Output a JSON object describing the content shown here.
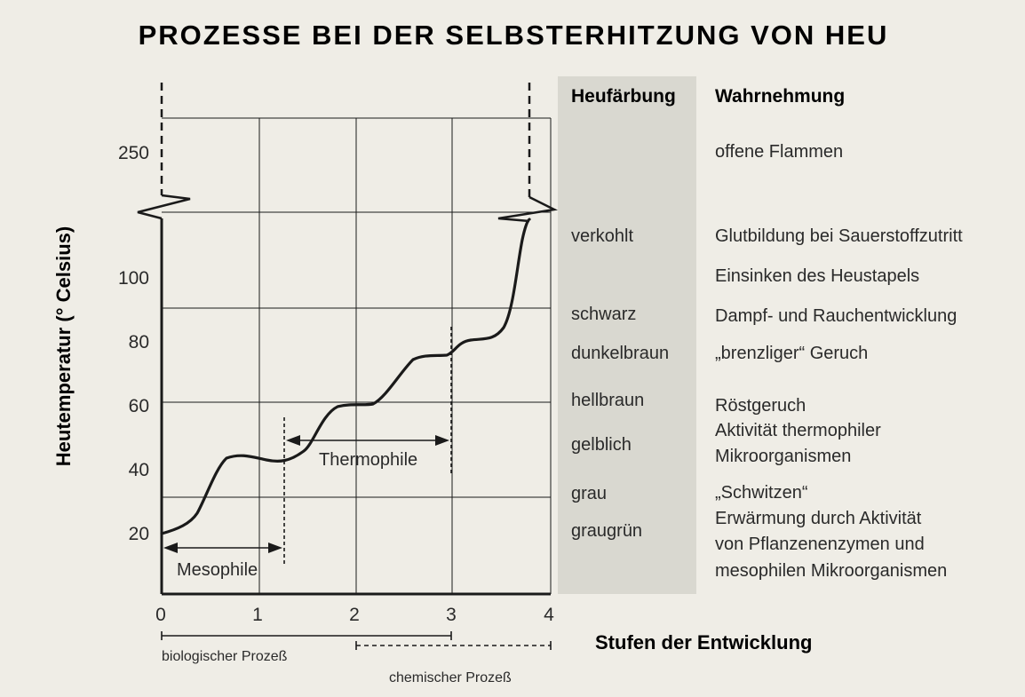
{
  "title": "PROZESSE BEI DER SELBSTERHITZUNG VON HEU",
  "y_axis_label": "Heutemperatur (° Celsius)",
  "x_axis_label": "Stufen der Entwicklung",
  "x_ticks": [
    "0",
    "1",
    "2",
    "3",
    "4"
  ],
  "y_ticks": [
    {
      "label": "20",
      "value": 20
    },
    {
      "label": "40",
      "value": 40
    },
    {
      "label": "60",
      "value": 60
    },
    {
      "label": "80",
      "value": 80
    },
    {
      "label": "100",
      "value": 100
    },
    {
      "label": "250",
      "value": 250
    }
  ],
  "phases": {
    "mesophile": "Mesophile",
    "thermophile": "Thermophile"
  },
  "processes": {
    "biological": "biologischer Prozeß",
    "chemical": "chemischer Prozeß"
  },
  "table": {
    "header_color": "Heufärbung",
    "header_perception": "Wahrnehmung",
    "colors": [
      "verkohlt",
      "schwarz",
      "dunkelbraun",
      "hellbraun",
      "gelblich",
      "grau",
      "graugrün"
    ],
    "perceptions": [
      "offene Flammen",
      "Glutbildung bei Sauerstoffzutritt",
      "Einsinken des Heustapels",
      "Dampf- und Rauchentwicklung",
      "„brenzliger“ Geruch",
      "Röstgeruch",
      "Aktivität thermophiler",
      "Mikroorganismen",
      "„Schwitzen“",
      "Erwärmung durch Aktivität",
      "von Pflanzenenzymen und",
      "mesophilen Mikroorganismen"
    ]
  },
  "colors": {
    "background": "#efede6",
    "band": "#d9d8d0",
    "ink": "#1a1a1a"
  }
}
